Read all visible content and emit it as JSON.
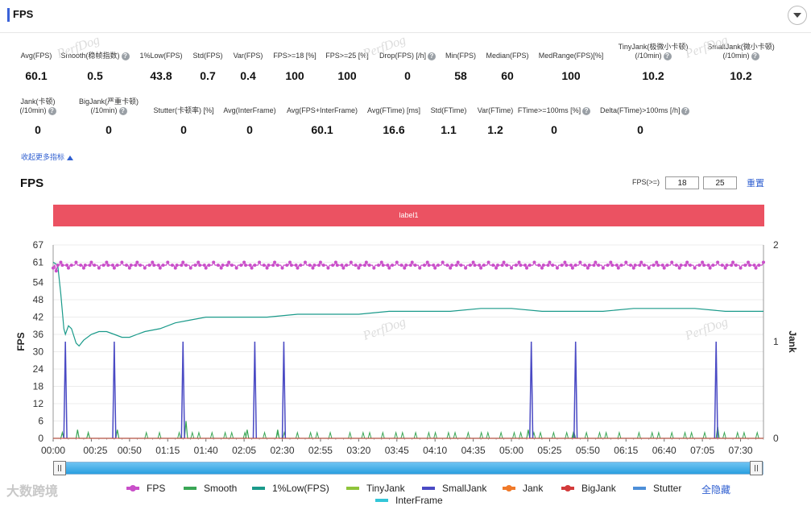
{
  "header": {
    "title": "FPS"
  },
  "metrics_row1": [
    {
      "label": "Avg(FPS)",
      "value": "60.1",
      "help": false
    },
    {
      "label": "Smooth(稳帧指数)",
      "value": "0.5",
      "help": true
    },
    {
      "label": "1%Low(FPS)",
      "value": "43.8",
      "help": false
    },
    {
      "label": "Std(FPS)",
      "value": "0.7",
      "help": false
    },
    {
      "label": "Var(FPS)",
      "value": "0.4",
      "help": false
    },
    {
      "label": "FPS>=18 [%]",
      "value": "100",
      "help": false
    },
    {
      "label": "FPS>=25 [%]",
      "value": "100",
      "help": false
    },
    {
      "label": "Drop(FPS) [/h]",
      "value": "0",
      "help": true
    },
    {
      "label": "Min(FPS)",
      "value": "58",
      "help": false
    },
    {
      "label": "Median(FPS)",
      "value": "60",
      "help": false
    },
    {
      "label": "MedRange(FPS)[%]",
      "value": "100",
      "help": false
    },
    {
      "label": "TinyJank(极微小卡顿)",
      "label2": "(/10min)",
      "value": "10.2",
      "help": true
    },
    {
      "label": "SmallJank(微小卡顿)",
      "label2": "(/10min)",
      "value": "10.2",
      "help": true
    }
  ],
  "metrics_row2": [
    {
      "label": "Jank(卡顿)",
      "label2": "(/10min)",
      "value": "0",
      "help": true
    },
    {
      "label": "BigJank(严重卡顿)",
      "label2": "(/10min)",
      "value": "0",
      "help": true
    },
    {
      "label": "Stutter(卡顿率) [%]",
      "value": "0",
      "help": false
    },
    {
      "label": "Avg(InterFrame)",
      "value": "0",
      "help": false
    },
    {
      "label": "Avg(FPS+InterFrame)",
      "value": "60.1",
      "help": false
    },
    {
      "label": "Avg(FTime) [ms]",
      "value": "16.6",
      "help": false
    },
    {
      "label": "Std(FTime)",
      "value": "1.1",
      "help": false
    },
    {
      "label": "Var(FTime)",
      "value": "1.2",
      "help": false
    },
    {
      "label": "FTime>=100ms [%]",
      "value": "0",
      "help": true
    },
    {
      "label": "Delta(FTime)>100ms [/h]",
      "value": "0",
      "help": true
    }
  ],
  "more_link": "收起更多指标",
  "chart_header": {
    "title": "FPS",
    "threshold_label": "FPS(>=)",
    "threshold_1": "18",
    "threshold_2": "25",
    "reset": "重置"
  },
  "label_band": "label1",
  "watermark": "PerfDog",
  "brand": "大数跨境",
  "legend_hide_all": "全隐藏",
  "colors": {
    "fps": "#c94fc9",
    "smooth": "#3aa655",
    "low1": "#1a9a8a",
    "tinyjank": "#8fc43a",
    "smalljank": "#4a4ac4",
    "jank": "#f07a2a",
    "bigjank": "#d33b3b",
    "stutter": "#4d8fd8",
    "interframe": "#33c6d8"
  },
  "chart_data": {
    "type": "line",
    "title": "FPS",
    "xlabel": "",
    "ylabel": "FPS",
    "y2label": "Jank",
    "ylim": [
      0,
      67
    ],
    "y2lim": [
      0,
      2
    ],
    "yticks": [
      0,
      6,
      12,
      18,
      24,
      30,
      36,
      42,
      48,
      54,
      61,
      67
    ],
    "y2ticks": [
      0,
      1,
      2
    ],
    "xlim_seconds": [
      0,
      465
    ],
    "xticks": [
      {
        "t": 0,
        "label": "00:00"
      },
      {
        "t": 25,
        "label": "00:25"
      },
      {
        "t": 50,
        "label": "00:50"
      },
      {
        "t": 75,
        "label": "01:15"
      },
      {
        "t": 100,
        "label": "01:40"
      },
      {
        "t": 125,
        "label": "02:05"
      },
      {
        "t": 150,
        "label": "02:30"
      },
      {
        "t": 175,
        "label": "02:55"
      },
      {
        "t": 200,
        "label": "03:20"
      },
      {
        "t": 225,
        "label": "03:45"
      },
      {
        "t": 250,
        "label": "04:10"
      },
      {
        "t": 275,
        "label": "04:35"
      },
      {
        "t": 300,
        "label": "05:00"
      },
      {
        "t": 325,
        "label": "05:25"
      },
      {
        "t": 350,
        "label": "05:50"
      },
      {
        "t": 375,
        "label": "06:15"
      },
      {
        "t": 400,
        "label": "06:40"
      },
      {
        "t": 425,
        "label": "07:05"
      },
      {
        "t": 450,
        "label": "07:30"
      }
    ],
    "series": [
      {
        "name": "FPS",
        "key": "fps",
        "axis": "left",
        "base": 60,
        "alt": [
          59,
          61
        ],
        "low_points": [
          {
            "t": 2,
            "v": 58
          }
        ]
      },
      {
        "name": "Smooth",
        "key": "smooth",
        "axis": "left",
        "points": [
          [
            0,
            0
          ],
          [
            5,
            0
          ],
          [
            6,
            2
          ],
          [
            7,
            0
          ],
          [
            15,
            0
          ],
          [
            16,
            3
          ],
          [
            17,
            0
          ],
          [
            22,
            0
          ],
          [
            23,
            2
          ],
          [
            24,
            0
          ],
          [
            41,
            0
          ],
          [
            42,
            3
          ],
          [
            43,
            0
          ],
          [
            86,
            0
          ],
          [
            87,
            6
          ],
          [
            88,
            0
          ],
          [
            126,
            0
          ],
          [
            127,
            3
          ],
          [
            128,
            0
          ],
          [
            146,
            0
          ],
          [
            147,
            3
          ],
          [
            148,
            0
          ],
          [
            310,
            0
          ],
          [
            311,
            3
          ],
          [
            312,
            0
          ],
          [
            340,
            0
          ],
          [
            341,
            2
          ],
          [
            342,
            0
          ],
          [
            434,
            0
          ],
          [
            435,
            4
          ],
          [
            436,
            0
          ],
          [
            465,
            0
          ]
        ]
      },
      {
        "name": "1%Low(FPS)",
        "key": "low1",
        "axis": "left",
        "points": [
          [
            0,
            61
          ],
          [
            3,
            60
          ],
          [
            5,
            50
          ],
          [
            7,
            38
          ],
          [
            8,
            36
          ],
          [
            10,
            39
          ],
          [
            12,
            38
          ],
          [
            15,
            33
          ],
          [
            17,
            32
          ],
          [
            20,
            34
          ],
          [
            25,
            36
          ],
          [
            30,
            37
          ],
          [
            35,
            37
          ],
          [
            40,
            36
          ],
          [
            45,
            35
          ],
          [
            50,
            35
          ],
          [
            55,
            36
          ],
          [
            60,
            37
          ],
          [
            70,
            38
          ],
          [
            80,
            40
          ],
          [
            90,
            41
          ],
          [
            100,
            42
          ],
          [
            120,
            42
          ],
          [
            140,
            42
          ],
          [
            160,
            43
          ],
          [
            180,
            43
          ],
          [
            200,
            43
          ],
          [
            220,
            44
          ],
          [
            240,
            44
          ],
          [
            260,
            44
          ],
          [
            280,
            45
          ],
          [
            300,
            45
          ],
          [
            320,
            44
          ],
          [
            340,
            44
          ],
          [
            360,
            44
          ],
          [
            380,
            45
          ],
          [
            400,
            45
          ],
          [
            420,
            45
          ],
          [
            440,
            44
          ],
          [
            465,
            44
          ]
        ]
      },
      {
        "name": "TinyJank",
        "key": "tinyjank",
        "axis": "left",
        "points": []
      },
      {
        "name": "SmallJank",
        "key": "smalljank",
        "axis": "right",
        "spikes": [
          8,
          40,
          85,
          132,
          151,
          313,
          342,
          434
        ]
      },
      {
        "name": "Jank",
        "key": "jank",
        "axis": "right",
        "points": []
      },
      {
        "name": "BigJank",
        "key": "bigjank",
        "axis": "right",
        "points": []
      },
      {
        "name": "Stutter",
        "key": "stutter",
        "axis": "right",
        "points": []
      },
      {
        "name": "InterFrame",
        "key": "interframe",
        "axis": "left",
        "points": []
      }
    ],
    "legend": [
      "FPS",
      "Smooth",
      "1%Low(FPS)",
      "TinyJank",
      "SmallJank",
      "Jank",
      "BigJank",
      "Stutter",
      "InterFrame"
    ]
  }
}
